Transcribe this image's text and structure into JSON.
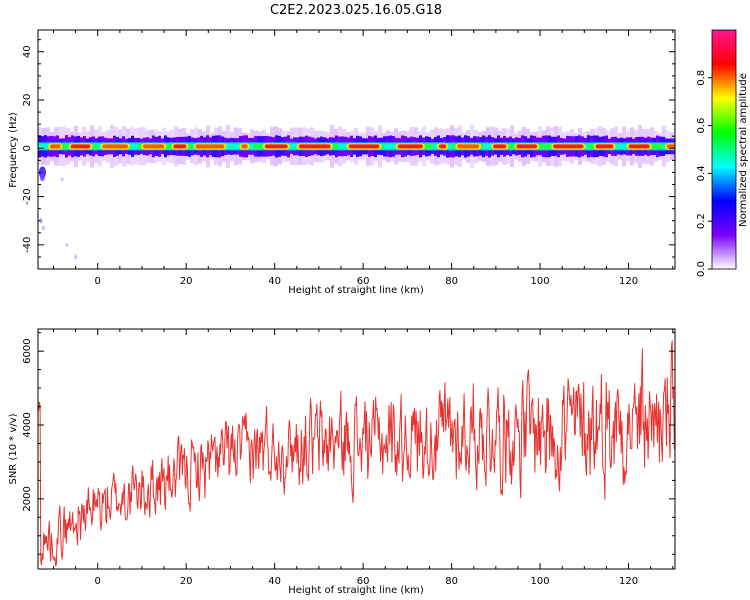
{
  "title": "C2E2.2023.025.16.05.G18",
  "chart_data": [
    {
      "type": "heatmap",
      "xlabel": "Height of straight line (km)",
      "ylabel": "Frequency (Hz)",
      "xlim": [
        -13.5,
        130.5
      ],
      "ylim": [
        -50,
        49
      ],
      "xticks": [
        0,
        20,
        40,
        60,
        80,
        100,
        120
      ],
      "yticks": [
        -40,
        -20,
        0,
        20,
        40
      ],
      "band_center_hz": 0.8,
      "band_halfwidth_hz": 3.0,
      "colorbar": {
        "label": "Normalized spectral amplitude",
        "range": [
          0,
          1
        ],
        "ticks": [
          0.0,
          0.2,
          0.4,
          0.6,
          0.8
        ],
        "colormap": [
          "#ffffff",
          "#7a00ff",
          "#0000ff",
          "#00ffff",
          "#00ff00",
          "#ffff00",
          "#ff0000",
          "#ff1493"
        ]
      }
    },
    {
      "type": "line",
      "xlabel": "Height of straight line (km)",
      "ylabel": "SNR (10 * v/v)",
      "xlim": [
        -13.5,
        130.5
      ],
      "ylim": [
        100,
        6600
      ],
      "xticks": [
        0,
        20,
        40,
        60,
        80,
        100,
        120
      ],
      "yticks": [
        2000,
        4000,
        6000
      ],
      "color": "#e8322f",
      "trend_x": [
        -13,
        0,
        10,
        20,
        30,
        40,
        50,
        60,
        70,
        80,
        90,
        100,
        110,
        120,
        130
      ],
      "trend_y": [
        700,
        1800,
        2200,
        2700,
        3200,
        3400,
        3500,
        3600,
        3700,
        3750,
        3850,
        3900,
        4000,
        4100,
        4200
      ]
    }
  ]
}
